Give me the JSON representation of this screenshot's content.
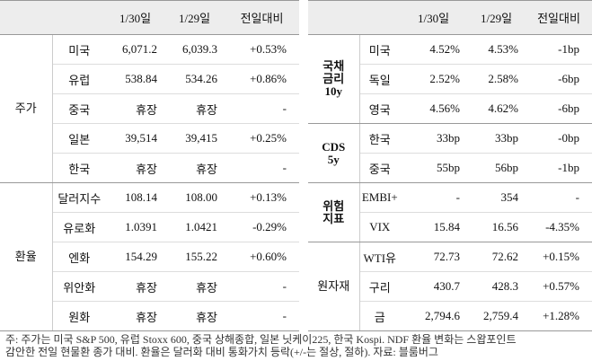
{
  "left": {
    "header": [
      "1/30일",
      "1/29일",
      "전일대비"
    ],
    "groups": [
      {
        "label": "주가",
        "rows": [
          [
            "미국",
            "6,071.2",
            "6,039.3",
            "+0.53%"
          ],
          [
            "유럽",
            "538.84",
            "534.26",
            "+0.86%"
          ],
          [
            "중국",
            "휴장",
            "휴장",
            "-"
          ],
          [
            "일본",
            "39,514",
            "39,415",
            "+0.25%"
          ],
          [
            "한국",
            "휴장",
            "휴장",
            "-"
          ]
        ]
      },
      {
        "label": "환율",
        "rows": [
          [
            "달러지수",
            "108.14",
            "108.00",
            "+0.13%"
          ],
          [
            "유로화",
            "1.0391",
            "1.0421",
            "-0.29%"
          ],
          [
            "엔화",
            "154.29",
            "155.22",
            "+0.60%"
          ],
          [
            "위안화",
            "휴장",
            "휴장",
            "-"
          ],
          [
            "원화",
            "휴장",
            "휴장",
            "-"
          ]
        ]
      }
    ]
  },
  "right": {
    "header": [
      "1/30일",
      "1/29일",
      "전일대비"
    ],
    "groups": [
      {
        "label": "국채\n금리\n10y",
        "rows": [
          [
            "미국",
            "4.52%",
            "4.53%",
            "-1bp"
          ],
          [
            "독일",
            "2.52%",
            "2.58%",
            "-6bp"
          ],
          [
            "영국",
            "4.56%",
            "4.62%",
            "-6bp"
          ]
        ]
      },
      {
        "label": "CDS\n5y",
        "rows": [
          [
            "한국",
            "33bp",
            "33bp",
            "-0bp"
          ],
          [
            "중국",
            "55bp",
            "56bp",
            "-1bp"
          ]
        ]
      },
      {
        "label": "위험\n지표",
        "rows": [
          [
            "EMBI+",
            "-",
            "354",
            "-"
          ],
          [
            "VIX",
            "15.84",
            "16.56",
            "-4.35%"
          ]
        ]
      },
      {
        "label": "원자재",
        "rows": [
          [
            "WTI유",
            "72.73",
            "72.62",
            "+0.15%"
          ],
          [
            "구리",
            "430.7",
            "428.3",
            "+0.57%"
          ],
          [
            "금",
            "2,794.6",
            "2,759.4",
            "+1.28%"
          ]
        ]
      }
    ]
  },
  "note": [
    "주: 주가는 미국 S&P 500, 유럽 Stoxx 600, 중국 상해종합, 일본 닛케이225, 한국 Kospi. NDF 환율 변화는 스왑포인트",
    "감안한 전일 현물환 종가 대비. 환율은 달러화 대비 통화가치 등락(+/-는 절상, 절하). 자료: 블룸버그"
  ]
}
